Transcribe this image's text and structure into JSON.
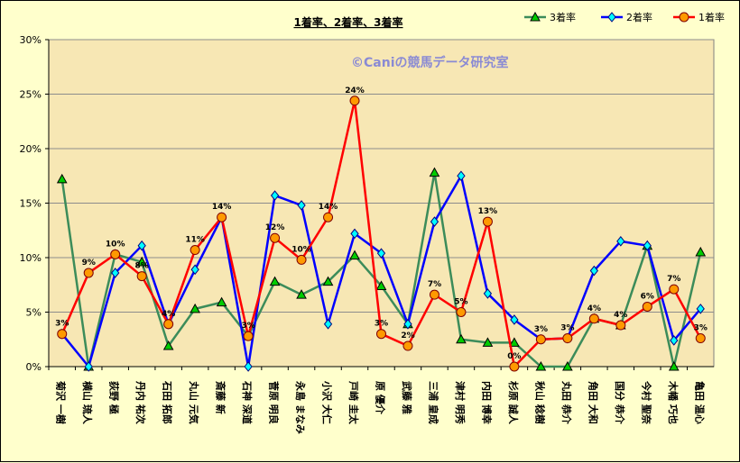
{
  "chart_data": {
    "type": "line",
    "title": "1着率、2着率、3着率",
    "watermark": "©Caniの競馬データ研究室",
    "categories": [
      "菊沢 一樹",
      "横山 琉人",
      "荻野 極",
      "丹内 祐次",
      "石田 拓郎",
      "丸山 元気",
      "斎藤 新",
      "石神 深道",
      "菅原 明良",
      "永島 まなみ",
      "小沢 大仁",
      "戸崎 圭太",
      "原 優介",
      "武藤 雅",
      "三浦 皇成",
      "津村 明秀",
      "内田 博幸",
      "杉原 誠人",
      "秋山 稔樹",
      "丸田 恭介",
      "角田 大和",
      "国分 恭介",
      "今村 聖奈",
      "木幡 巧也",
      "亀田 温心"
    ],
    "ylim": [
      0,
      30
    ],
    "yticks": [
      "0%",
      "5%",
      "10%",
      "15%",
      "20%",
      "25%",
      "30%"
    ],
    "grid": true,
    "legend_position": "top-right",
    "colors": {
      "plot_bg": "#f7e7b4",
      "grid": "#8c8c8c",
      "place3": "#3c8c5a",
      "place2": "#0000ff",
      "win": "#ff0000",
      "place3_marker": "#00cc00",
      "place2_marker": "#00ffff",
      "win_marker": "#ff9900"
    },
    "series": [
      {
        "name": "3着率",
        "key": "place3",
        "values": [
          17.2,
          0,
          10.3,
          9.6,
          1.9,
          5.3,
          5.9,
          2.8,
          7.8,
          6.6,
          7.8,
          10.2,
          7.4,
          3.9,
          17.8,
          2.5,
          2.2,
          2.2,
          0,
          0,
          4.4,
          3.8,
          11.1,
          0,
          10.5
        ]
      },
      {
        "name": "2着率",
        "key": "place2",
        "values": [
          3.0,
          0,
          8.6,
          11.1,
          3.9,
          8.9,
          13.7,
          0,
          15.7,
          14.8,
          3.9,
          12.2,
          10.4,
          3.9,
          13.3,
          17.5,
          6.7,
          4.3,
          2.5,
          2.6,
          8.8,
          11.5,
          11.1,
          2.4,
          5.3
        ]
      },
      {
        "name": "1着率",
        "key": "win",
        "values": [
          3.0,
          8.6,
          10.3,
          8.3,
          3.9,
          10.7,
          13.7,
          2.8,
          11.8,
          9.8,
          13.7,
          24.4,
          3.0,
          1.9,
          6.6,
          5.0,
          13.3,
          0,
          2.5,
          2.6,
          4.4,
          3.8,
          5.5,
          7.1,
          2.6
        ],
        "labels": [
          "3%",
          "9%",
          "10%",
          "8%",
          "4%",
          "11%",
          "14%",
          "3%",
          "12%",
          "10%",
          "14%",
          "24%",
          "3%",
          "2%",
          "7%",
          "5%",
          "13%",
          "0%",
          "3%",
          "3%",
          "4%",
          "4%",
          "6%",
          "7%",
          "3%"
        ]
      }
    ]
  }
}
